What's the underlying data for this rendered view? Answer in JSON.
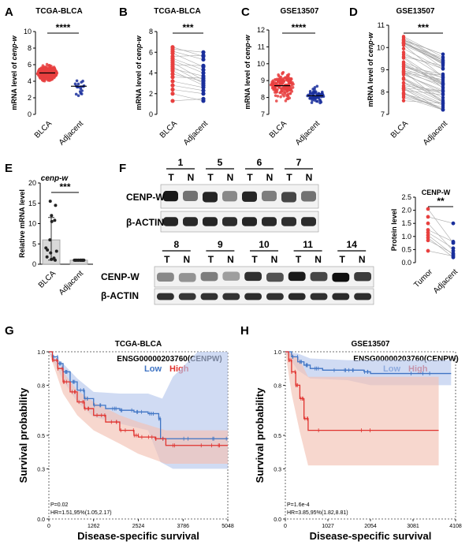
{
  "colors": {
    "tumor": "#e8403f",
    "normal": "#1a2f9c",
    "km_low": "#3f74c4",
    "km_high": "#e0332f",
    "km_low_band": "#b7c8ec",
    "km_high_band": "#f3c2b3",
    "blot_dark": "#151515",
    "sig": "#000000"
  },
  "panel_letters": [
    "A",
    "B",
    "C",
    "D",
    "E",
    "F",
    "G",
    "H"
  ],
  "chart_data": [
    {
      "panel": "A",
      "type": "scatter",
      "title": "TCGA-BLCA",
      "ylabel": "mRNA level of cenp-w",
      "categories": [
        "BLCA",
        "Adjacent"
      ],
      "ylim": [
        0,
        10
      ],
      "yticks": [
        0,
        2,
        4,
        6,
        8,
        10
      ],
      "significance": "****",
      "medians": [
        5.0,
        3.4
      ],
      "n": [
        408,
        19
      ]
    },
    {
      "panel": "B",
      "type": "line",
      "title": "TCGA-BLCA",
      "ylabel": "mRNA level of cenp-w",
      "categories": [
        "BLCA",
        "Adjacent"
      ],
      "ylim": [
        0,
        8
      ],
      "yticks": [
        0,
        2,
        4,
        6,
        8
      ],
      "significance": "***",
      "pairs": [
        [
          6.5,
          5.6
        ],
        [
          6.3,
          6.0
        ],
        [
          6.1,
          5.3
        ],
        [
          5.9,
          4.6
        ],
        [
          5.6,
          5.7
        ],
        [
          5.4,
          4.3
        ],
        [
          5.2,
          4.0
        ],
        [
          5.0,
          3.3
        ],
        [
          4.8,
          4.7
        ],
        [
          4.6,
          3.0
        ],
        [
          4.4,
          3.7
        ],
        [
          4.2,
          2.8
        ],
        [
          3.9,
          3.2
        ],
        [
          3.6,
          3.5
        ],
        [
          3.2,
          2.6
        ],
        [
          2.8,
          2.3
        ],
        [
          2.4,
          2.0
        ],
        [
          2.0,
          1.3
        ],
        [
          1.3,
          1.5
        ]
      ]
    },
    {
      "panel": "C",
      "type": "scatter",
      "title": "GSE13507",
      "ylabel": "mRNA level of cenp-w",
      "categories": [
        "BLCA",
        "Adjacent"
      ],
      "ylim": [
        7,
        12
      ],
      "yticks": [
        7,
        8,
        9,
        10,
        11,
        12
      ],
      "significance": "****",
      "medians": [
        8.7,
        8.1
      ],
      "n": [
        165,
        68
      ]
    },
    {
      "panel": "D",
      "type": "line",
      "title": "GSE13507",
      "ylabel": "mRNA level of cenp-w",
      "categories": [
        "BLCA",
        "Adjacent"
      ],
      "ylim": [
        7,
        11
      ],
      "yticks": [
        7,
        8,
        9,
        10,
        11
      ],
      "significance": "***",
      "n_pairs": 58
    },
    {
      "panel": "E",
      "type": "bar",
      "title": "cenp-w",
      "ylabel": "Relative mRNA level",
      "categories": [
        "BLCA",
        "Adjacent"
      ],
      "ylim": [
        0,
        20
      ],
      "yticks": [
        0,
        5,
        10,
        15,
        20
      ],
      "significance": "***",
      "means": [
        6.0,
        1.0
      ],
      "sd_upper": [
        11.5,
        1.1
      ],
      "sd_lower": [
        1.0,
        0.9
      ],
      "points": [
        [
          15.5,
          14.5,
          12.0,
          10.8,
          10.5,
          6.0,
          4.0,
          3.5,
          3.2,
          2.8,
          1.8,
          1.5,
          1.2,
          1.0
        ],
        [
          1.0,
          1.0,
          1.0,
          1.0,
          1.0,
          1.0,
          1.0,
          1.0,
          1.0,
          1.0,
          1.0,
          1.0,
          1.0,
          1.0
        ]
      ]
    },
    {
      "panel": "F",
      "type": "table",
      "blot_top_samples": [
        "1",
        "5",
        "6",
        "7"
      ],
      "blot_bottom_samples": [
        "8",
        "9",
        "10",
        "11",
        "14"
      ],
      "lane_T": "T",
      "lane_N": "N",
      "row_labels": [
        "CENP-W",
        "β-ACTIN"
      ],
      "top_T": [
        0.95,
        0.9,
        0.9,
        0.75
      ],
      "top_N": [
        0.55,
        0.45,
        0.5,
        0.55
      ],
      "bottom_T": [
        0.45,
        0.5,
        0.85,
        0.95,
        1.0
      ],
      "bottom_N": [
        0.4,
        0.35,
        0.7,
        0.75,
        0.8
      ]
    },
    {
      "panel": "F-quant",
      "type": "line",
      "title": "CENP-W",
      "ylabel": "Protein level",
      "categories": [
        "Tumor",
        "Adjacent"
      ],
      "ylim": [
        0,
        2.5
      ],
      "yticks": [
        0.0,
        0.5,
        1.0,
        1.5,
        2.0,
        2.5
      ],
      "significance": "**",
      "pairs": [
        [
          2.05,
          0.75
        ],
        [
          1.75,
          1.5
        ],
        [
          1.5,
          0.45
        ],
        [
          1.25,
          0.8
        ],
        [
          1.15,
          0.55
        ],
        [
          1.05,
          0.3
        ],
        [
          0.95,
          0.2
        ],
        [
          0.85,
          0.35
        ],
        [
          0.45,
          0.25
        ]
      ]
    },
    {
      "panel": "G",
      "type": "line",
      "title": "TCGA-BLCA",
      "subtitle": "ENSG00000203760(CENPW)",
      "legend": [
        "Low",
        "High"
      ],
      "xlabel": "Disease-specific survival",
      "ylabel": "Survival probability",
      "xticks": [
        0,
        1262,
        2524,
        3786,
        5048
      ],
      "xlim": [
        0,
        5048
      ],
      "yticks": [
        0.0,
        0.3,
        0.5,
        0.8,
        1.0
      ],
      "ylim": [
        0,
        1
      ],
      "stats": [
        "P=0.02",
        "HR=1.51,95%(1.05,2.17)"
      ],
      "series": [
        {
          "name": "Low",
          "values": [
            [
              0,
              1.0
            ],
            [
              100,
              0.97
            ],
            [
              250,
              0.93
            ],
            [
              400,
              0.88
            ],
            [
              600,
              0.82
            ],
            [
              800,
              0.77
            ],
            [
              1000,
              0.72
            ],
            [
              1262,
              0.68
            ],
            [
              1600,
              0.66
            ],
            [
              2000,
              0.65
            ],
            [
              2400,
              0.64
            ],
            [
              2800,
              0.63
            ],
            [
              3100,
              0.6
            ],
            [
              3150,
              0.48
            ],
            [
              4000,
              0.48
            ],
            [
              5048,
              0.48
            ]
          ],
          "ci_upper": [
            [
              0,
              1.0
            ],
            [
              400,
              0.93
            ],
            [
              800,
              0.84
            ],
            [
              1262,
              0.76
            ],
            [
              2000,
              0.75
            ],
            [
              2800,
              0.75
            ],
            [
              3200,
              0.72
            ],
            [
              3500,
              0.85
            ],
            [
              4200,
              1.0
            ],
            [
              5048,
              1.0
            ]
          ],
          "ci_lower": [
            [
              0,
              1.0
            ],
            [
              400,
              0.83
            ],
            [
              800,
              0.7
            ],
            [
              1262,
              0.61
            ],
            [
              2000,
              0.57
            ],
            [
              2800,
              0.53
            ],
            [
              3150,
              0.34
            ],
            [
              3500,
              0.3
            ],
            [
              4200,
              0.3
            ],
            [
              5048,
              0.3
            ]
          ]
        },
        {
          "name": "High",
          "values": [
            [
              0,
              1.0
            ],
            [
              100,
              0.95
            ],
            [
              250,
              0.9
            ],
            [
              400,
              0.82
            ],
            [
              600,
              0.76
            ],
            [
              800,
              0.7
            ],
            [
              1000,
              0.66
            ],
            [
              1262,
              0.62
            ],
            [
              1600,
              0.58
            ],
            [
              2000,
              0.53
            ],
            [
              2400,
              0.5
            ],
            [
              2524,
              0.49
            ],
            [
              3000,
              0.48
            ],
            [
              3300,
              0.44
            ],
            [
              4300,
              0.44
            ],
            [
              5048,
              0.44
            ]
          ],
          "ci_upper": [
            [
              0,
              1.0
            ],
            [
              400,
              0.88
            ],
            [
              800,
              0.77
            ],
            [
              1262,
              0.7
            ],
            [
              2000,
              0.62
            ],
            [
              2524,
              0.58
            ],
            [
              3300,
              0.53
            ],
            [
              4300,
              0.53
            ],
            [
              5048,
              0.53
            ]
          ],
          "ci_lower": [
            [
              0,
              1.0
            ],
            [
              400,
              0.75
            ],
            [
              800,
              0.62
            ],
            [
              1262,
              0.53
            ],
            [
              2000,
              0.45
            ],
            [
              2524,
              0.39
            ],
            [
              3300,
              0.33
            ],
            [
              4300,
              0.33
            ],
            [
              5048,
              0.33
            ]
          ]
        }
      ]
    },
    {
      "panel": "H",
      "type": "line",
      "title": "GSE13507",
      "subtitle": "ENSG00000203760(CENPW)",
      "legend": [
        "Low",
        "High"
      ],
      "xlabel": "Disease-specific survival",
      "ylabel": "Survival probability",
      "xticks": [
        0,
        1027,
        2054,
        3081,
        4108
      ],
      "xlim": [
        0,
        4108
      ],
      "yticks": [
        0.0,
        0.3,
        0.5,
        0.8,
        1.0
      ],
      "ylim": [
        0,
        1
      ],
      "stats": [
        "P=1.6e-4",
        "HR=3.85,95%(1.82,8.81)"
      ],
      "series": [
        {
          "name": "Low",
          "values": [
            [
              0,
              1.0
            ],
            [
              150,
              0.97
            ],
            [
              300,
              0.94
            ],
            [
              450,
              0.92
            ],
            [
              600,
              0.9
            ],
            [
              900,
              0.89
            ],
            [
              1500,
              0.89
            ],
            [
              1900,
              0.88
            ],
            [
              2054,
              0.87
            ],
            [
              4000,
              0.87
            ]
          ],
          "ci_upper": [
            [
              0,
              1.0
            ],
            [
              300,
              0.99
            ],
            [
              600,
              0.96
            ],
            [
              1500,
              0.95
            ],
            [
              2054,
              0.95
            ],
            [
              4000,
              0.95
            ]
          ],
          "ci_lower": [
            [
              0,
              1.0
            ],
            [
              300,
              0.89
            ],
            [
              600,
              0.84
            ],
            [
              1500,
              0.83
            ],
            [
              2054,
              0.8
            ],
            [
              4000,
              0.8
            ]
          ]
        },
        {
          "name": "High",
          "values": [
            [
              0,
              1.0
            ],
            [
              80,
              0.95
            ],
            [
              150,
              0.88
            ],
            [
              250,
              0.8
            ],
            [
              350,
              0.72
            ],
            [
              450,
              0.6
            ],
            [
              550,
              0.53
            ],
            [
              3700,
              0.53
            ]
          ],
          "ci_upper": [
            [
              0,
              1.0
            ],
            [
              150,
              0.99
            ],
            [
              350,
              0.95
            ],
            [
              550,
              0.85
            ],
            [
              3700,
              0.85
            ]
          ],
          "ci_lower": [
            [
              0,
              1.0
            ],
            [
              150,
              0.75
            ],
            [
              350,
              0.52
            ],
            [
              550,
              0.32
            ],
            [
              3700,
              0.32
            ]
          ]
        }
      ]
    }
  ]
}
